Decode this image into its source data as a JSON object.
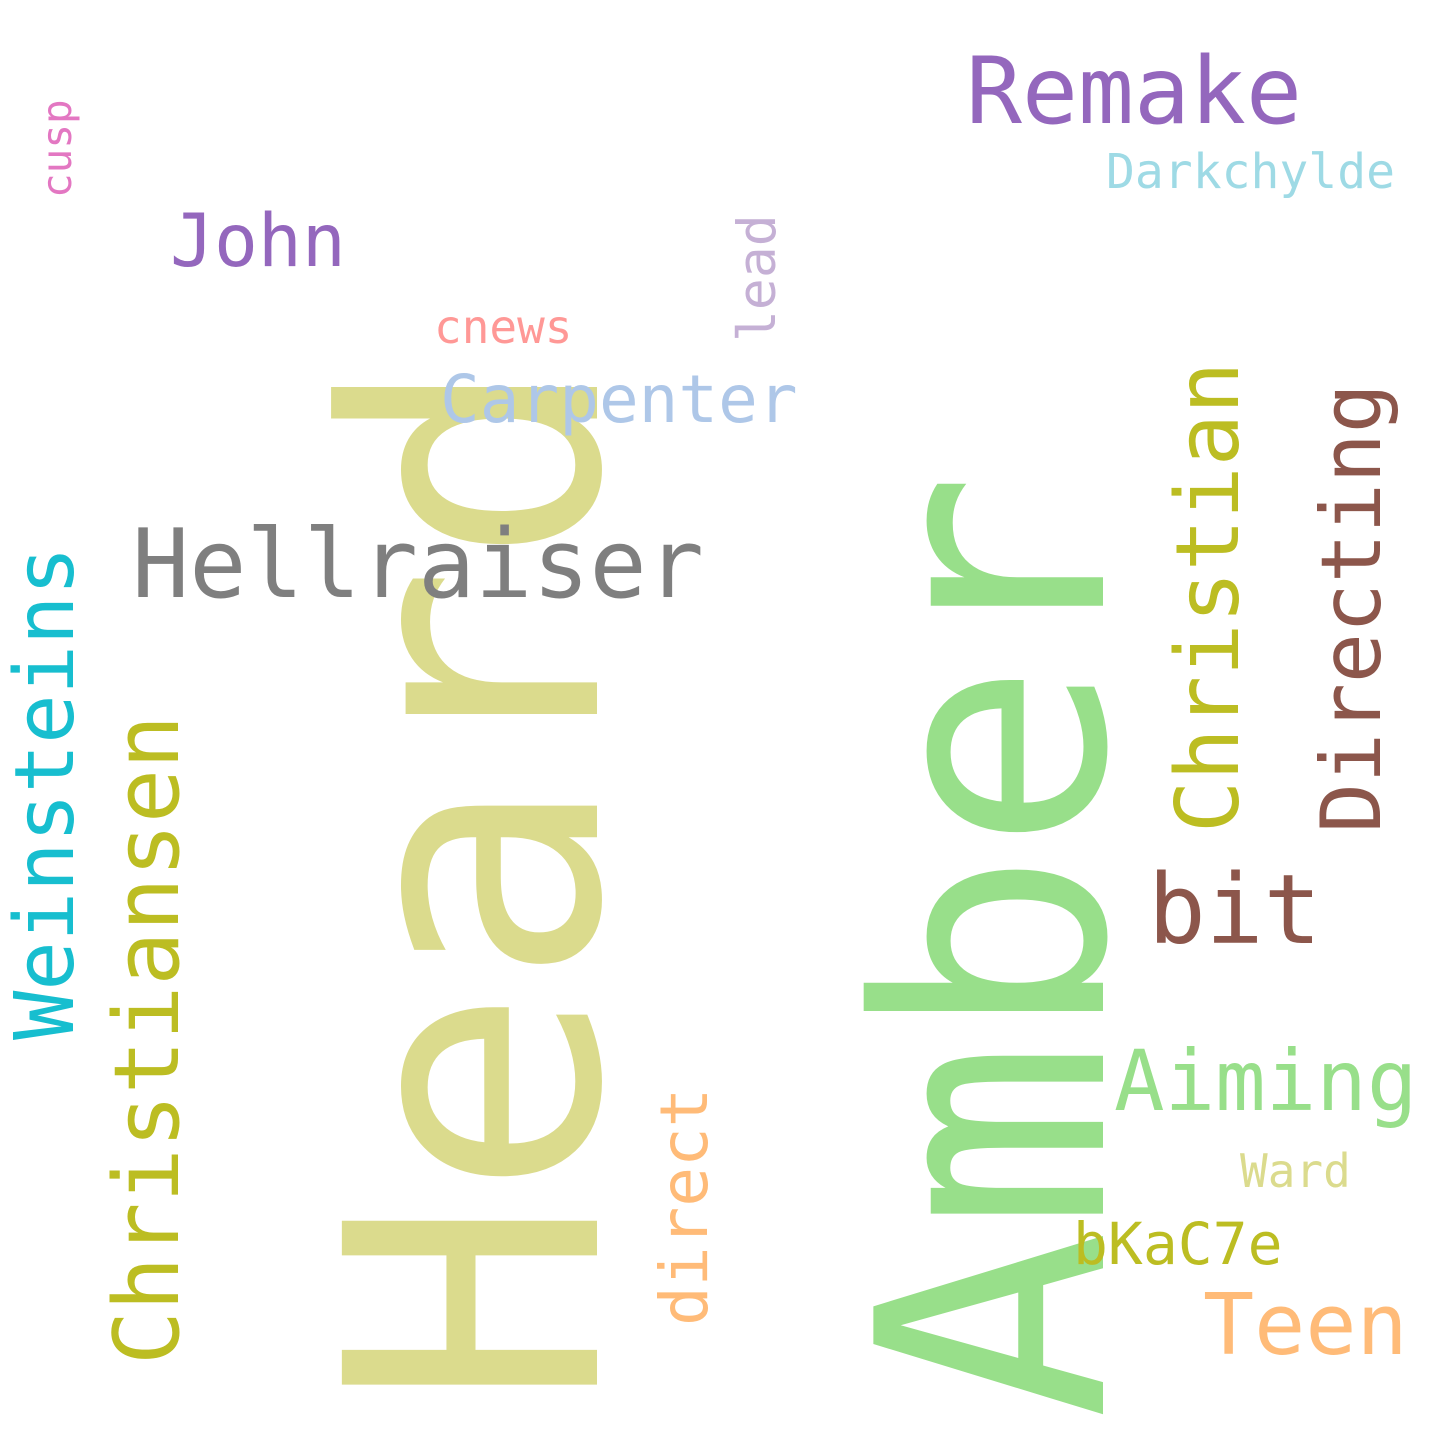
{
  "words": [
    {
      "id": "heard",
      "text": "Heard",
      "color": "#dbdb8d"
    },
    {
      "id": "amber",
      "text": "Amber",
      "color": "#98df8a"
    },
    {
      "id": "remake",
      "text": "Remake",
      "color": "#9467bd"
    },
    {
      "id": "darkchylde",
      "text": "Darkchylde",
      "color": "#9edae5"
    },
    {
      "id": "cusp",
      "text": "cusp",
      "color": "#e377c2"
    },
    {
      "id": "john",
      "text": "John",
      "color": "#9467bd"
    },
    {
      "id": "lead",
      "text": "lead",
      "color": "#c5b0d5"
    },
    {
      "id": "cnews",
      "text": "cnews",
      "color": "#ff9896"
    },
    {
      "id": "carpenter",
      "text": "Carpenter",
      "color": "#aec7e8"
    },
    {
      "id": "hellraiser",
      "text": "Hellraiser",
      "color": "#7f7f7f"
    },
    {
      "id": "christian",
      "text": "Christian",
      "color": "#bcbd22"
    },
    {
      "id": "directing",
      "text": "Directing",
      "color": "#8c564b"
    },
    {
      "id": "weinsteins",
      "text": "Weinsteins",
      "color": "#17becf"
    },
    {
      "id": "christiansen",
      "text": "Christiansen",
      "color": "#bcbd22"
    },
    {
      "id": "bit",
      "text": "bit",
      "color": "#8c564b"
    },
    {
      "id": "aiming",
      "text": "Aiming",
      "color": "#98df8a"
    },
    {
      "id": "ward",
      "text": "Ward",
      "color": "#dbdb8d"
    },
    {
      "id": "direct",
      "text": "direct",
      "color": "#ffbb78"
    },
    {
      "id": "bkac7e",
      "text": "bKaC7e",
      "color": "#bcbd22"
    },
    {
      "id": "teen",
      "text": "Teen",
      "color": "#ffbb78"
    }
  ]
}
